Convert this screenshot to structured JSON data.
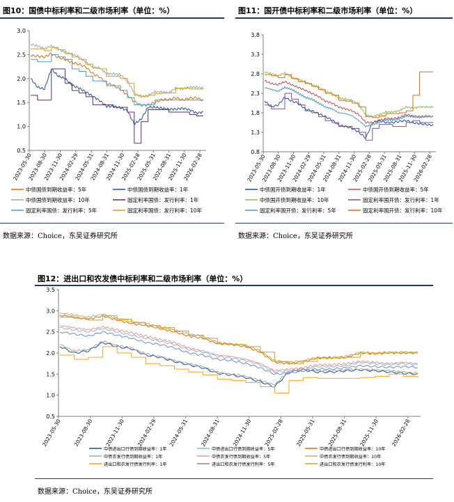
{
  "charts": [
    {
      "title": "图10：国债中标利率和二级市场利率（单位：%）",
      "source": "数据来源：Choice，东吴证券研究所",
      "chart_data": {
        "type": "line",
        "ylim": [
          0.5,
          3.0
        ],
        "yticks": [
          "0.5",
          "1.0",
          "1.5",
          "2.0",
          "2.5",
          "3.0"
        ],
        "xticks": [
          "2023-05-30",
          "2023-08-30",
          "2023-11-30",
          "2024-02-29",
          "2024-05-31",
          "2024-08-31",
          "2024-11-30",
          "2025-02-28",
          "2025-05-31",
          "2025-08-31",
          "2025-11-30",
          "2026-02-28"
        ],
        "series": [
          {
            "name": "中债国债到期收益率：5年",
            "color": "#e46c0a",
            "step": false,
            "values": [
              2.48,
              2.47,
              2.45,
              2.52,
              2.44,
              2.4,
              2.33,
              2.3,
              2.24,
              2.1,
              2.03,
              1.9,
              1.86,
              1.77,
              1.66,
              1.52,
              1.44,
              1.45,
              1.5,
              1.56,
              1.56,
              1.6,
              1.55,
              1.59,
              1.6,
              1.54
            ]
          },
          {
            "name": "中债国债到期收益率：1年",
            "color": "#1f4e9a",
            "step": false,
            "values": [
              2.0,
              1.82,
              1.78,
              2.2,
              2.05,
              2.0,
              1.86,
              1.8,
              1.72,
              1.63,
              1.54,
              1.42,
              1.42,
              1.39,
              1.33,
              1.05,
              1.15,
              1.4,
              1.4,
              1.38,
              1.36,
              1.36,
              1.38,
              1.35,
              1.28,
              1.3
            ]
          },
          {
            "name": "中债国债到期收益率：10年",
            "color": "#a6a6a6",
            "step": false,
            "values": [
              2.72,
              2.68,
              2.62,
              2.68,
              2.61,
              2.55,
              2.51,
              2.45,
              2.34,
              2.24,
              2.22,
              2.1,
              2.1,
              2.08,
              1.95,
              1.7,
              1.62,
              1.65,
              1.72,
              1.72,
              1.7,
              1.8,
              1.78,
              1.82,
              1.82,
              1.8
            ]
          },
          {
            "name": "固定利率国债：发行利率：1年",
            "color": "#5b2c6f",
            "step": true,
            "values": [
              1.65,
              1.55,
              1.55,
              2.2,
              2.2,
              1.9,
              1.75,
              1.7,
              1.62,
              1.45,
              1.45,
              1.45,
              1.4,
              1.4,
              1.3,
              0.65,
              1.1,
              1.35,
              1.35,
              1.35,
              1.3,
              1.3,
              1.3,
              1.25,
              1.22,
              1.22
            ]
          },
          {
            "name": "固定利率国债：发行利率：5年",
            "color": "#4a9ec9",
            "step": true,
            "values": [
              2.4,
              2.35,
              2.35,
              2.5,
              2.45,
              2.4,
              2.2,
              2.15,
              2.05,
              1.95,
              1.95,
              1.85,
              1.85,
              1.75,
              1.6,
              1.45,
              1.45,
              1.45,
              1.55,
              1.55,
              1.55,
              1.55,
              1.55,
              1.55,
              1.55,
              1.55
            ]
          },
          {
            "name": "固定利率国债：发行利率：10年",
            "color": "#d4a017",
            "step": true,
            "values": [
              2.62,
              2.62,
              2.58,
              2.65,
              2.6,
              2.52,
              2.45,
              2.4,
              2.3,
              2.22,
              2.2,
              2.05,
              2.05,
              2.0,
              1.9,
              1.65,
              1.62,
              1.65,
              1.68,
              1.7,
              1.7,
              1.8,
              1.8,
              1.78,
              1.78,
              1.78
            ]
          }
        ]
      }
    },
    {
      "title": "图11：国开债中标利率和二级市场利率（单位：%）",
      "source": "数据来源：Choice，东吴证券研究所",
      "chart_data": {
        "type": "line",
        "ylim": [
          0.8,
          3.8
        ],
        "yticks": [
          "0.8",
          "1.3",
          "1.8",
          "2.3",
          "2.8",
          "3.3",
          "3.8"
        ],
        "xticks": [
          "2023-05-30",
          "2023-08-30",
          "2023-11-30",
          "2024-02-29",
          "2024-05-31",
          "2024-08-31",
          "2024-11-30",
          "2025-02-28",
          "2025-05-31",
          "2025-08-31",
          "2025-11-30",
          "2026-02-28"
        ],
        "series": [
          {
            "name": "中债国开债到期收益率：1年",
            "color": "#1f4e9a",
            "step": false,
            "values": [
              2.1,
              1.95,
              2.0,
              2.2,
              2.1,
              2.05,
              1.9,
              1.85,
              1.78,
              1.7,
              1.62,
              1.48,
              1.45,
              1.4,
              1.3,
              1.15,
              1.55,
              1.6,
              1.55,
              1.55,
              1.58,
              1.6,
              1.55,
              1.52,
              1.5,
              1.48
            ]
          },
          {
            "name": "中债国开债到期收益率：5年",
            "color": "#c0504d",
            "step": false,
            "values": [
              2.62,
              2.55,
              2.52,
              2.6,
              2.52,
              2.45,
              2.38,
              2.3,
              2.22,
              2.1,
              2.05,
              1.95,
              1.9,
              1.85,
              1.75,
              1.55,
              1.55,
              1.6,
              1.65,
              1.65,
              1.68,
              1.75,
              1.72,
              1.7,
              1.72,
              1.7
            ]
          },
          {
            "name": "中债国开债到期收益率：10年",
            "color": "#8fbc5a",
            "step": false,
            "values": [
              2.85,
              2.8,
              2.75,
              2.82,
              2.72,
              2.65,
              2.6,
              2.52,
              2.45,
              2.35,
              2.3,
              2.18,
              2.15,
              2.12,
              2.0,
              1.75,
              1.7,
              1.75,
              1.82,
              1.82,
              1.85,
              1.95,
              1.92,
              1.95,
              1.95,
              1.95
            ]
          },
          {
            "name": "固定利率国开债：发行利率：1年",
            "color": "#7a4fa0",
            "step": true,
            "values": [
              2.0,
              1.9,
              1.9,
              2.3,
              2.15,
              2.0,
              1.85,
              1.8,
              1.7,
              1.6,
              1.55,
              1.45,
              1.45,
              1.4,
              1.3,
              1.1,
              1.4,
              1.5,
              1.5,
              1.45,
              1.45,
              1.55,
              1.6,
              1.55,
              1.55,
              1.55
            ]
          },
          {
            "name": "固定利率国开债：发行利率：5年",
            "color": "#4a9ec9",
            "step": false,
            "values": [
              2.45,
              2.4,
              2.35,
              2.45,
              2.4,
              2.3,
              2.2,
              2.15,
              2.05,
              1.95,
              1.9,
              1.8,
              1.78,
              1.72,
              1.6,
              1.45,
              1.5,
              1.55,
              1.62,
              1.62,
              1.65,
              1.72,
              1.7,
              1.68,
              1.7,
              1.7
            ]
          },
          {
            "name": "固定利率国开债：发行利率：10年",
            "color": "#e46c0a",
            "step": true,
            "values": [
              2.78,
              2.75,
              2.7,
              2.78,
              2.68,
              2.6,
              2.55,
              2.48,
              2.4,
              2.3,
              2.25,
              2.12,
              2.1,
              2.05,
              1.95,
              1.7,
              1.68,
              1.72,
              1.78,
              1.78,
              1.8,
              1.85,
              2.25,
              2.85,
              2.85,
              2.85
            ]
          }
        ]
      }
    },
    {
      "title": "图12：进出口和农发债中标利率和二级市场利率（单位：%）",
      "source": "数据来源：Choice，东吴证券研究所",
      "chart_data": {
        "type": "line",
        "ylim": [
          0.5,
          3.5
        ],
        "yticks": [
          "0.5",
          "1.0",
          "1.5",
          "2.0",
          "2.5",
          "3.0",
          "3.5"
        ],
        "xticks": [
          "2023-05-30",
          "2023-08-30",
          "2023-11-30",
          "2024-02-29",
          "2024-05-31",
          "2024-08-31",
          "2024-11-30",
          "2025-02-28",
          "2025-05-31",
          "2025-08-31",
          "2025-11-30",
          "2026-02-28"
        ],
        "series": [
          {
            "name": "中债进出口行债到期收益率：1年",
            "color": "#1f4e9a",
            "step": false,
            "values": [
              2.15,
              2.0,
              2.05,
              2.25,
              2.15,
              2.1,
              1.95,
              1.9,
              1.8,
              1.72,
              1.65,
              1.52,
              1.48,
              1.42,
              1.32,
              1.2,
              1.55,
              1.6,
              1.55,
              1.55,
              1.58,
              1.6,
              1.58,
              1.55,
              1.52,
              1.5
            ]
          },
          {
            "name": "中债进出口行债到期收益率：5年",
            "color": "#8fb3d9",
            "step": false,
            "values": [
              2.6,
              2.55,
              2.5,
              2.58,
              2.5,
              2.42,
              2.35,
              2.28,
              2.2,
              2.08,
              2.02,
              1.92,
              1.88,
              1.82,
              1.72,
              1.55,
              1.58,
              1.62,
              1.68,
              1.68,
              1.7,
              1.78,
              1.75,
              1.72,
              1.75,
              1.72
            ]
          },
          {
            "name": "中债进出口行债到期收益率：10年",
            "color": "#e46c0a",
            "step": false,
            "values": [
              2.9,
              2.85,
              2.8,
              2.88,
              2.78,
              2.7,
              2.65,
              2.58,
              2.5,
              2.4,
              2.35,
              2.22,
              2.2,
              2.15,
              2.02,
              1.78,
              1.75,
              1.8,
              1.88,
              1.88,
              1.9,
              2.0,
              1.98,
              2.0,
              2.0,
              2.0
            ]
          },
          {
            "name": "中债农发行债到期收益率：1年",
            "color": "#a6a6a6",
            "step": false,
            "values": [
              2.2,
              2.05,
              2.08,
              2.28,
              2.18,
              2.12,
              1.98,
              1.92,
              1.82,
              1.75,
              1.68,
              1.55,
              1.5,
              1.45,
              1.35,
              1.25,
              1.58,
              1.62,
              1.58,
              1.58,
              1.6,
              1.62,
              1.6,
              1.58,
              1.55,
              1.52
            ]
          },
          {
            "name": "中债农发行债到期收益率：5年",
            "color": "#e99a8e",
            "step": false,
            "values": [
              2.65,
              2.6,
              2.55,
              2.62,
              2.55,
              2.48,
              2.4,
              2.32,
              2.25,
              2.12,
              2.05,
              1.95,
              1.92,
              1.85,
              1.75,
              1.58,
              1.62,
              1.65,
              1.72,
              1.72,
              1.75,
              1.8,
              1.78,
              1.75,
              1.78,
              1.75
            ]
          },
          {
            "name": "中债农发行债到期收益率：10年",
            "color": "#c0b060",
            "step": false,
            "values": [
              2.95,
              2.9,
              2.85,
              2.92,
              2.82,
              2.75,
              2.7,
              2.62,
              2.55,
              2.45,
              2.4,
              2.25,
              2.22,
              2.18,
              2.05,
              1.82,
              1.78,
              1.82,
              1.9,
              1.9,
              1.92,
              2.02,
              2.0,
              2.02,
              2.02,
              2.02
            ]
          },
          {
            "name": "进出口和农发行债发行利率：1年",
            "color": "#f5a623",
            "step": true,
            "values": [
              1.95,
              1.85,
              1.9,
              2.15,
              2.0,
              1.9,
              1.75,
              1.7,
              1.62,
              1.55,
              1.48,
              1.38,
              1.35,
              1.3,
              1.2,
              1.05,
              1.35,
              1.42,
              1.4,
              1.4,
              1.4,
              1.42,
              1.45,
              1.5,
              1.45,
              1.42
            ]
          },
          {
            "name": "进出口和农发行债发行利率：5年",
            "color": "#6c8ebf",
            "step": false,
            "values": [
              2.5,
              2.45,
              2.4,
              2.5,
              2.42,
              2.35,
              2.25,
              2.2,
              2.12,
              2.0,
              1.95,
              1.85,
              1.82,
              1.75,
              1.65,
              1.5,
              1.52,
              1.58,
              1.62,
              1.62,
              1.65,
              1.7,
              1.68,
              1.66,
              1.68,
              1.66
            ]
          },
          {
            "name": "进出口和农发行债发行利率：10年",
            "color": "#d4a017",
            "step": true,
            "values": [
              2.85,
              2.82,
              2.78,
              2.88,
              2.8,
              2.72,
              2.65,
              2.6,
              2.52,
              2.42,
              2.35,
              2.22,
              2.2,
              2.15,
              2.02,
              1.8,
              1.75,
              1.8,
              1.88,
              1.88,
              1.9,
              2.0,
              2.0,
              2.0,
              2.0,
              2.0
            ]
          }
        ]
      }
    }
  ]
}
